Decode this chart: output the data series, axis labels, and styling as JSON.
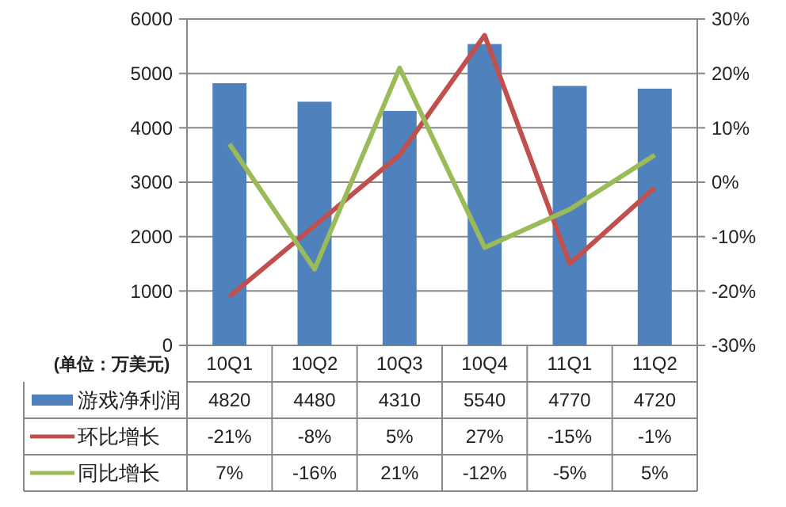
{
  "chart_data": {
    "type": "bar",
    "categories": [
      "10Q1",
      "10Q2",
      "10Q3",
      "10Q4",
      "11Q1",
      "11Q2"
    ],
    "series": [
      {
        "name": "游戏净利润",
        "color": "#4f81bd",
        "values": [
          4820,
          4480,
          4310,
          5540,
          4770,
          4720
        ],
        "value_labels": [
          "4820",
          "4480",
          "4310",
          "5540",
          "4770",
          "4720"
        ]
      },
      {
        "name": "环比增长",
        "type": "line",
        "axis": "y2",
        "color": "#c0504d",
        "values": [
          -21,
          -8,
          5,
          27,
          -15,
          -1
        ],
        "value_labels": [
          "-21%",
          "-8%",
          "5%",
          "27%",
          "-15%",
          "-1%"
        ]
      },
      {
        "name": "同比增长",
        "type": "line",
        "axis": "y2",
        "color": "#9bbb59",
        "values": [
          7,
          -16,
          21,
          -12,
          -5,
          5
        ],
        "value_labels": [
          "7%",
          "-16%",
          "21%",
          "-12%",
          "-5%",
          "5%"
        ]
      }
    ],
    "ylim": [
      0,
      6000
    ],
    "yticks": [
      0,
      1000,
      2000,
      3000,
      4000,
      5000,
      6000
    ],
    "y2lim": [
      -30,
      30
    ],
    "y2ticks": [
      {
        "value": -30,
        "label": "-30%"
      },
      {
        "value": -20,
        "label": "-20%"
      },
      {
        "value": -10,
        "label": "-10%"
      },
      {
        "value": 0,
        "label": "0%"
      },
      {
        "value": 10,
        "label": "10%"
      },
      {
        "value": 20,
        "label": "20%"
      },
      {
        "value": 30,
        "label": "30%"
      }
    ],
    "grid": "y",
    "legend": "bottom",
    "line_style": "solid",
    "marker": "none",
    "annotations": [
      "(单位：万美元)"
    ]
  }
}
